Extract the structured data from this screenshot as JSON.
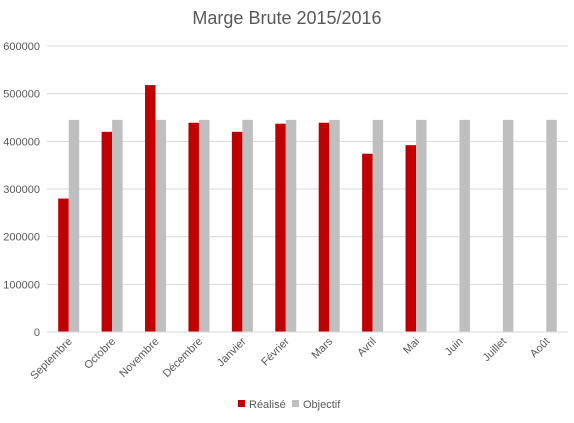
{
  "chart_data": {
    "type": "bar",
    "title": "Marge Brute 2015/2016",
    "categories": [
      "Septembre",
      "Octobre",
      "Novembre",
      "Décembre",
      "Janvier",
      "Février",
      "Mars",
      "Avril",
      "Mai",
      "Juin",
      "Juillet",
      "Août"
    ],
    "series": [
      {
        "name": "Réalisé",
        "color": "#C00000",
        "values": [
          280000,
          420000,
          518000,
          439000,
          420000,
          437000,
          439000,
          374000,
          392000,
          null,
          null,
          null
        ]
      },
      {
        "name": "Objectif",
        "color": "#BFBFBF",
        "values": [
          445000,
          445000,
          445000,
          445000,
          445000,
          445000,
          445000,
          445000,
          445000,
          445000,
          445000,
          445000
        ]
      }
    ],
    "ylim": [
      0,
      600000
    ],
    "yticks": [
      "0",
      "100000",
      "200000",
      "300000",
      "400000",
      "500000",
      "600000"
    ],
    "grid": true,
    "legend": "bottom"
  }
}
